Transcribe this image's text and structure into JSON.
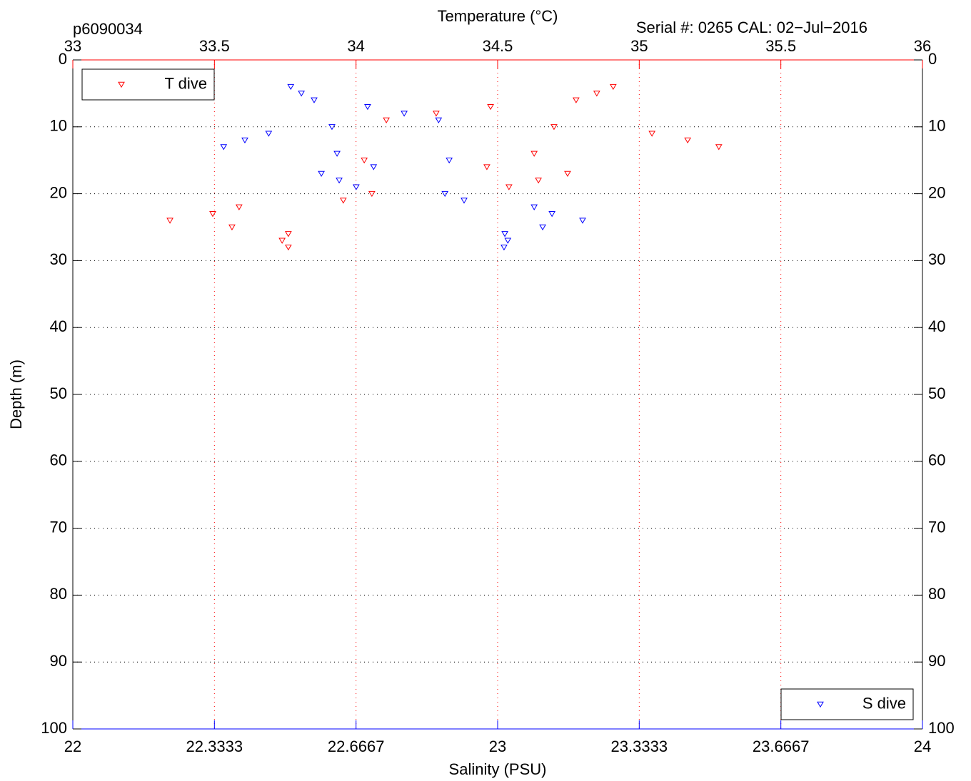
{
  "chart_data": {
    "type": "scatter",
    "title": "p6090034",
    "subtitle": "Serial #: 0265  CAL: 02−Jul−2016",
    "xlabel": "Salinity (PSU)",
    "x2label": "Temperature (°C)",
    "ylabel": "Depth (m)",
    "xlim": [
      22,
      24
    ],
    "xticks": [
      22,
      22.3333,
      22.6667,
      23,
      23.3333,
      23.6667,
      24
    ],
    "x2lim": [
      33,
      36
    ],
    "x2ticks": [
      33,
      33.5,
      34,
      34.5,
      35,
      35.5,
      36
    ],
    "ylim": [
      0,
      100
    ],
    "yticks": [
      0,
      10,
      20,
      30,
      40,
      50,
      60,
      70,
      80,
      90,
      100
    ],
    "y_reversed": true,
    "grid": true,
    "xcolor": "#0000ff",
    "x2color": "#ff0000",
    "series": [
      {
        "name": "T dive",
        "color": "#ff0000",
        "axis": "x2",
        "legend": "upper left",
        "x": [
          34.908,
          34.85,
          34.777,
          34.475,
          34.283,
          34.107,
          34.699,
          35.045,
          35.171,
          35.281,
          34.629,
          34.029,
          34.462,
          34.747,
          34.644,
          34.54,
          34.056,
          33.955,
          33.587,
          33.494,
          33.343,
          33.562,
          33.761,
          33.739,
          33.761
        ],
        "values": [
          4,
          5,
          6,
          7,
          8,
          9,
          10,
          11,
          12,
          13,
          14,
          15,
          16,
          17,
          18,
          19,
          20,
          21,
          22,
          23,
          24,
          25,
          26,
          27,
          28
        ]
      },
      {
        "name": "S dive",
        "color": "#0000ff",
        "axis": "x",
        "legend": "lower right",
        "x": [
          22.513,
          22.538,
          22.568,
          22.694,
          22.78,
          22.861,
          22.61,
          22.461,
          22.405,
          22.355,
          22.622,
          22.886,
          22.708,
          22.585,
          22.627,
          22.667,
          22.876,
          22.921,
          23.086,
          23.128,
          23.2,
          23.106,
          23.017,
          23.024,
          23.015
        ],
        "values": [
          4,
          5,
          6,
          7,
          8,
          9,
          10,
          11,
          12,
          13,
          14,
          15,
          16,
          17,
          18,
          19,
          20,
          21,
          22,
          23,
          24,
          25,
          26,
          27,
          28
        ]
      }
    ]
  }
}
